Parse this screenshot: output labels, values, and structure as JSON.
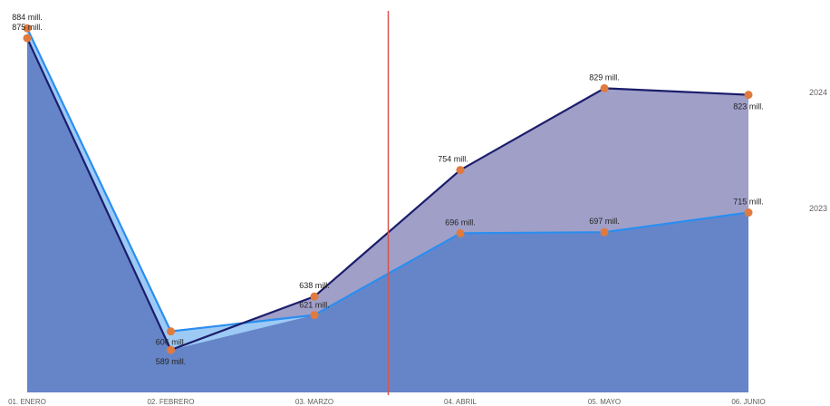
{
  "chart_data": {
    "type": "area",
    "categories": [
      "01. ENERO",
      "02. FEBRERO",
      "03. MARZO",
      "04. ABRIL",
      "05. MAYO",
      "06. JUNIO"
    ],
    "series": [
      {
        "name": "2024",
        "values": [
          875,
          589,
          638,
          754,
          829,
          823
        ],
        "labels": [
          "875 mill.",
          "589 mill.",
          "638 mill.",
          "754 mill.",
          "829 mill.",
          "823 mill."
        ],
        "line_color": "#1b1d6b",
        "fill_color": "#a09fc8"
      },
      {
        "name": "2023",
        "values": [
          884,
          606,
          621,
          696,
          697,
          715
        ],
        "labels": [
          "884 mill.",
          "606 mill.",
          "621 mill.",
          "696 mill.",
          "697 mill.",
          "715 mill."
        ],
        "line_color": "#2a8ef0",
        "fill_color": "#9dcaf5"
      }
    ],
    "overlap_fill_color": "#6685c8",
    "marker_color": "#e07a3e",
    "reference_line": {
      "after_category": "03. MARZO",
      "color": "#d9534f"
    },
    "ylim": [
      550,
      900
    ],
    "grid": false
  }
}
